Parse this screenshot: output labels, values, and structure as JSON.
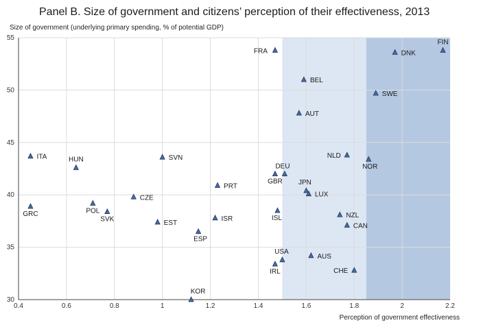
{
  "chart_data": {
    "type": "scatter",
    "title": "Panel B. Size of government and citizens’ perception of their effectiveness, 2013",
    "ylabel": "Size of government (underlying primary spending,  % of potential GDP)",
    "xlabel": "Perception of government effectiveness",
    "xlim": [
      0.4,
      2.2
    ],
    "ylim": [
      30,
      55
    ],
    "x_ticks": [
      "0.4",
      "0.6",
      "0.8",
      "1",
      "1.2",
      "1.4",
      "1.6",
      "1.8",
      "2",
      "2.2"
    ],
    "y_ticks": [
      "30",
      "35",
      "40",
      "45",
      "50",
      "55"
    ],
    "grid": true,
    "shaded_regions": [
      {
        "x_from": 1.5,
        "x_to": 1.85,
        "color": "#dde6f3"
      },
      {
        "x_from": 1.85,
        "x_to": 2.2,
        "color": "#b5c8e2"
      }
    ],
    "points": [
      {
        "label": "FIN",
        "x": 2.17,
        "y": 53.8
      },
      {
        "label": "DNK",
        "x": 1.97,
        "y": 53.6
      },
      {
        "label": "FRA",
        "x": 1.47,
        "y": 53.8
      },
      {
        "label": "BEL",
        "x": 1.59,
        "y": 51.0
      },
      {
        "label": "SWE",
        "x": 1.89,
        "y": 49.7
      },
      {
        "label": "AUT",
        "x": 1.57,
        "y": 47.8
      },
      {
        "label": "ITA",
        "x": 0.45,
        "y": 43.7
      },
      {
        "label": "SVN",
        "x": 1.0,
        "y": 43.6
      },
      {
        "label": "NLD",
        "x": 1.77,
        "y": 43.8
      },
      {
        "label": "NOR",
        "x": 1.86,
        "y": 43.4
      },
      {
        "label": "HUN",
        "x": 0.64,
        "y": 42.6
      },
      {
        "label": "DEU",
        "x": 1.51,
        "y": 42.0
      },
      {
        "label": "GBR",
        "x": 1.47,
        "y": 42.0
      },
      {
        "label": "PRT",
        "x": 1.23,
        "y": 40.9
      },
      {
        "label": "JPN",
        "x": 1.6,
        "y": 40.4
      },
      {
        "label": "LUX",
        "x": 1.61,
        "y": 40.1
      },
      {
        "label": "CZE",
        "x": 0.88,
        "y": 39.8
      },
      {
        "label": "POL",
        "x": 0.71,
        "y": 39.2
      },
      {
        "label": "GRC",
        "x": 0.45,
        "y": 38.9
      },
      {
        "label": "SVK",
        "x": 0.77,
        "y": 38.4
      },
      {
        "label": "ISL",
        "x": 1.48,
        "y": 38.5
      },
      {
        "label": "NZL",
        "x": 1.74,
        "y": 38.1
      },
      {
        "label": "ISR",
        "x": 1.22,
        "y": 37.8
      },
      {
        "label": "EST",
        "x": 0.98,
        "y": 37.4
      },
      {
        "label": "CAN",
        "x": 1.77,
        "y": 37.1
      },
      {
        "label": "ESP",
        "x": 1.15,
        "y": 36.5
      },
      {
        "label": "AUS",
        "x": 1.62,
        "y": 34.2
      },
      {
        "label": "USA",
        "x": 1.5,
        "y": 33.8
      },
      {
        "label": "IRL",
        "x": 1.47,
        "y": 33.4
      },
      {
        "label": "CHE",
        "x": 1.8,
        "y": 32.8
      },
      {
        "label": "KOR",
        "x": 1.12,
        "y": 30.0
      }
    ]
  }
}
